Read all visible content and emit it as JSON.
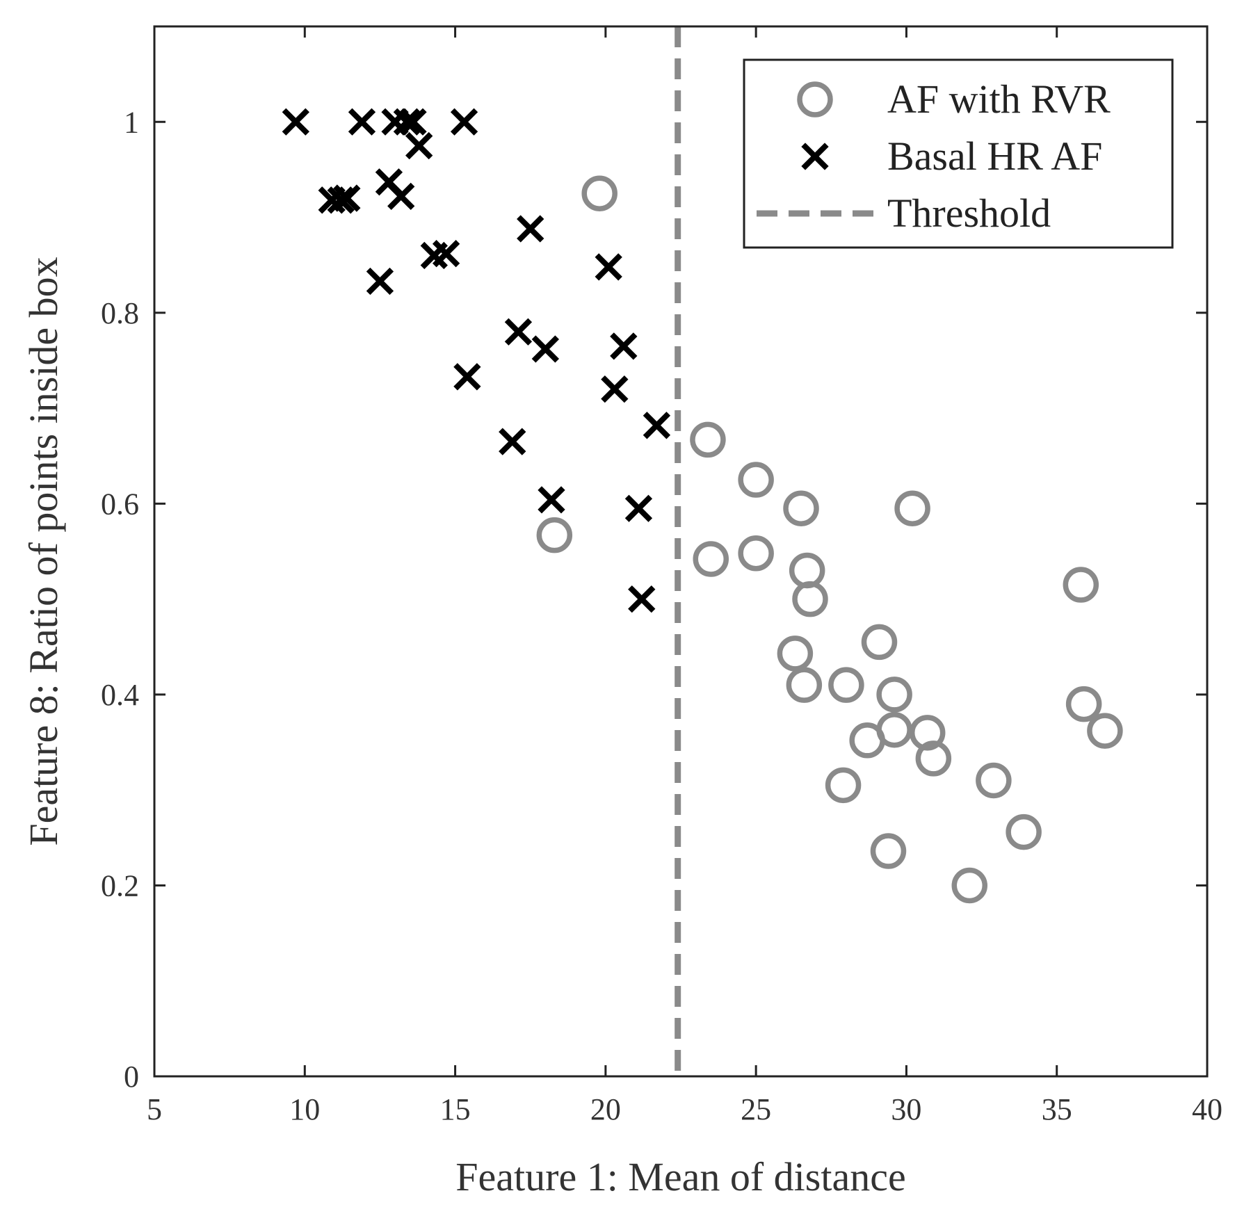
{
  "chart_data": {
    "type": "scatter",
    "title": "",
    "xlabel": "Feature 1: Mean of distance",
    "ylabel": "Feature 8: Ratio of points inside box",
    "xlim": [
      5,
      40
    ],
    "ylim": [
      0,
      1.1
    ],
    "xticks": [
      5,
      10,
      15,
      20,
      25,
      30,
      35,
      40
    ],
    "yticks": [
      0,
      0.2,
      0.4,
      0.6,
      0.8,
      1
    ],
    "xtick_labels": [
      "5",
      "10",
      "15",
      "20",
      "25",
      "30",
      "35",
      "40"
    ],
    "ytick_labels": [
      "0",
      "0.2",
      "0.4",
      "0.6",
      "0.8",
      "1"
    ],
    "grid": false,
    "legend_position": "top-right",
    "colors": {
      "af_rvr": "#8a8a8a",
      "basal": "#000000",
      "threshold": "#8a8a8a",
      "axes": "#222222"
    },
    "threshold": {
      "name": "Threshold",
      "x": 22.4
    },
    "series": [
      {
        "name": "AF with RVR",
        "marker": "circle",
        "points": [
          [
            19.8,
            0.925
          ],
          [
            18.3,
            0.567
          ],
          [
            23.4,
            0.667
          ],
          [
            23.5,
            0.542
          ],
          [
            25.0,
            0.625
          ],
          [
            25.0,
            0.548
          ],
          [
            26.5,
            0.595
          ],
          [
            26.7,
            0.53
          ],
          [
            26.8,
            0.5
          ],
          [
            26.3,
            0.443
          ],
          [
            26.6,
            0.41
          ],
          [
            29.1,
            0.455
          ],
          [
            28.0,
            0.41
          ],
          [
            29.6,
            0.4
          ],
          [
            28.7,
            0.352
          ],
          [
            29.6,
            0.363
          ],
          [
            27.9,
            0.305
          ],
          [
            30.7,
            0.36
          ],
          [
            30.9,
            0.333
          ],
          [
            29.4,
            0.236
          ],
          [
            32.1,
            0.2
          ],
          [
            32.9,
            0.31
          ],
          [
            33.9,
            0.256
          ],
          [
            30.2,
            0.595
          ],
          [
            35.8,
            0.515
          ],
          [
            35.9,
            0.39
          ],
          [
            36.6,
            0.362
          ]
        ]
      },
      {
        "name": "Basal HR AF",
        "marker": "x",
        "points": [
          [
            9.7,
            1.0
          ],
          [
            11.9,
            1.0
          ],
          [
            13.0,
            1.0
          ],
          [
            13.4,
            1.0
          ],
          [
            13.6,
            1.0
          ],
          [
            15.3,
            1.0
          ],
          [
            13.8,
            0.975
          ],
          [
            12.8,
            0.937
          ],
          [
            13.2,
            0.922
          ],
          [
            10.9,
            0.918
          ],
          [
            11.2,
            0.918
          ],
          [
            11.4,
            0.92
          ],
          [
            12.5,
            0.833
          ],
          [
            14.3,
            0.86
          ],
          [
            14.7,
            0.862
          ],
          [
            17.5,
            0.888
          ],
          [
            20.1,
            0.848
          ],
          [
            17.1,
            0.78
          ],
          [
            18.0,
            0.762
          ],
          [
            20.6,
            0.765
          ],
          [
            15.4,
            0.733
          ],
          [
            20.3,
            0.72
          ],
          [
            21.7,
            0.682
          ],
          [
            16.9,
            0.665
          ],
          [
            18.2,
            0.604
          ],
          [
            21.1,
            0.595
          ],
          [
            21.2,
            0.5
          ]
        ]
      }
    ]
  }
}
